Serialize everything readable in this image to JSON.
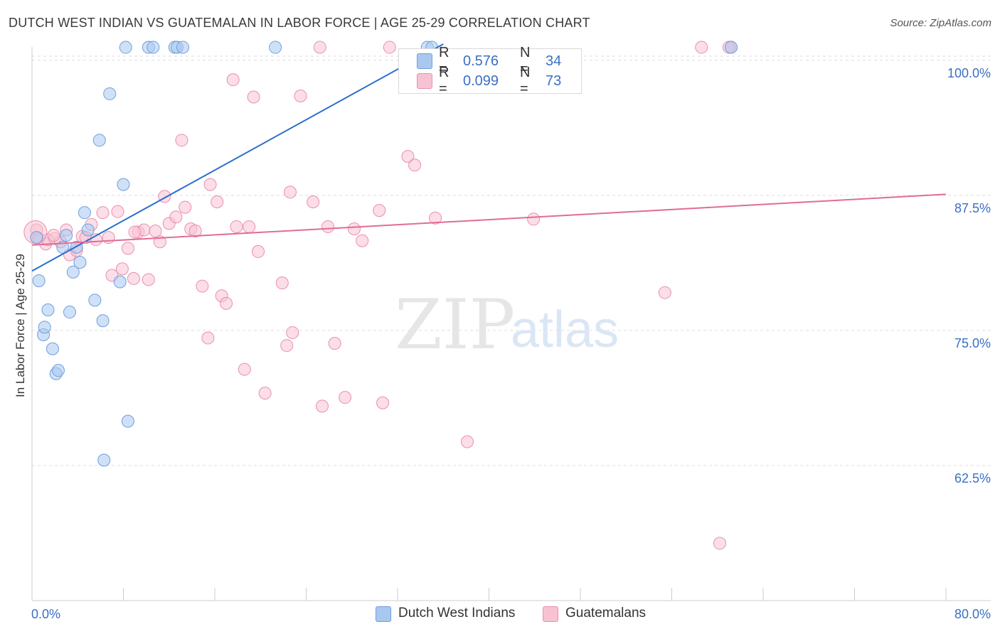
{
  "title": "DUTCH WEST INDIAN VS GUATEMALAN IN LABOR FORCE | AGE 25-29 CORRELATION CHART",
  "source": "Source: ZipAtlas.com",
  "watermark": {
    "zip": "ZIP",
    "atlas": "atlas"
  },
  "legend": {
    "rows": [
      {
        "r_label": "R =",
        "r_value": "0.576",
        "n_label": "N =",
        "n_value": "34"
      },
      {
        "r_label": "R =",
        "r_value": "0.099",
        "n_label": "N =",
        "n_value": "73"
      }
    ]
  },
  "bottom_legend": {
    "series1": "Dutch West Indians",
    "series2": "Guatemalans"
  },
  "colors": {
    "blue_fill": "#a9c8f0",
    "blue_stroke": "#6d9ee0",
    "blue_line": "#2a6fd0",
    "pink_fill": "#f7c3d3",
    "pink_stroke": "#ea8fae",
    "pink_line": "#e06c98",
    "axis_label": "#3a6fc4",
    "grid": "#dedede"
  },
  "chart_data": {
    "type": "scatter",
    "title": "DUTCH WEST INDIAN VS GUATEMALAN IN LABOR FORCE | AGE 25-29 CORRELATION CHART",
    "xlabel": "",
    "ylabel": "In Labor Force | Age 25-29",
    "xlim": [
      0,
      80
    ],
    "ylim": [
      50,
      101.5
    ],
    "x_tick_labels": [
      "0.0%",
      "80.0%"
    ],
    "y_ticks": [
      62.5,
      75.0,
      87.5,
      100.0
    ],
    "y_tick_labels": [
      "62.5%",
      "75.0%",
      "87.5%",
      "100.0%"
    ],
    "series": [
      {
        "name": "Dutch West Indians",
        "color": "#6d9ee0",
        "r": 0.576,
        "n": 34,
        "trend": {
          "x": [
            0,
            36
          ],
          "y": [
            80.5,
            101.5
          ]
        },
        "points": [
          [
            0.4,
            83.6
          ],
          [
            0.6,
            79.6
          ],
          [
            1.0,
            74.6
          ],
          [
            1.1,
            75.3
          ],
          [
            1.4,
            76.9
          ],
          [
            1.8,
            73.3
          ],
          [
            2.1,
            71.0
          ],
          [
            2.3,
            71.3
          ],
          [
            2.7,
            82.7
          ],
          [
            3.0,
            83.8
          ],
          [
            3.3,
            76.7
          ],
          [
            3.6,
            80.4
          ],
          [
            3.9,
            82.7
          ],
          [
            4.2,
            81.3
          ],
          [
            4.6,
            85.9
          ],
          [
            4.9,
            84.3
          ],
          [
            5.5,
            77.8
          ],
          [
            5.9,
            92.6
          ],
          [
            6.2,
            75.9
          ],
          [
            6.3,
            63.0
          ],
          [
            6.8,
            96.9
          ],
          [
            7.7,
            79.5
          ],
          [
            8.0,
            88.5
          ],
          [
            8.4,
            66.6
          ],
          [
            8.2,
            101.2
          ],
          [
            10.2,
            101.2
          ],
          [
            10.6,
            101.2
          ],
          [
            12.5,
            101.2
          ],
          [
            12.7,
            101.2
          ],
          [
            13.2,
            101.2
          ],
          [
            21.3,
            101.2
          ],
          [
            34.6,
            101.2
          ],
          [
            35.0,
            101.2
          ],
          [
            61.2,
            101.2
          ]
        ]
      },
      {
        "name": "Guatemalans",
        "color": "#ea8fae",
        "r": 0.099,
        "n": 73,
        "trend": {
          "x": [
            0,
            80
          ],
          "y": [
            82.9,
            87.6
          ]
        },
        "points": [
          [
            0.4,
            84.3
          ],
          [
            0.6,
            83.5
          ],
          [
            1.2,
            83.0
          ],
          [
            1.4,
            83.4
          ],
          [
            2.0,
            83.5
          ],
          [
            2.5,
            83.2
          ],
          [
            3.0,
            84.3
          ],
          [
            3.3,
            82.0
          ],
          [
            3.9,
            82.4
          ],
          [
            4.4,
            83.7
          ],
          [
            4.7,
            83.6
          ],
          [
            5.2,
            84.8
          ],
          [
            5.6,
            83.4
          ],
          [
            6.2,
            85.9
          ],
          [
            6.7,
            83.6
          ],
          [
            7.0,
            80.1
          ],
          [
            7.5,
            86.0
          ],
          [
            7.9,
            80.7
          ],
          [
            8.4,
            82.6
          ],
          [
            8.9,
            79.8
          ],
          [
            9.3,
            84.1
          ],
          [
            9.8,
            84.3
          ],
          [
            10.2,
            79.7
          ],
          [
            10.8,
            84.2
          ],
          [
            11.2,
            83.2
          ],
          [
            11.6,
            87.4
          ],
          [
            12.0,
            84.9
          ],
          [
            12.6,
            85.5
          ],
          [
            13.1,
            92.6
          ],
          [
            13.4,
            86.4
          ],
          [
            13.9,
            84.4
          ],
          [
            14.3,
            84.2
          ],
          [
            14.9,
            79.1
          ],
          [
            15.4,
            74.3
          ],
          [
            15.6,
            88.5
          ],
          [
            16.2,
            86.9
          ],
          [
            16.6,
            78.2
          ],
          [
            17.0,
            77.5
          ],
          [
            17.6,
            98.2
          ],
          [
            17.9,
            84.6
          ],
          [
            18.6,
            71.4
          ],
          [
            19.0,
            84.6
          ],
          [
            19.4,
            96.6
          ],
          [
            19.8,
            82.3
          ],
          [
            20.4,
            69.2
          ],
          [
            21.9,
            79.4
          ],
          [
            22.3,
            73.6
          ],
          [
            22.6,
            87.8
          ],
          [
            22.8,
            74.8
          ],
          [
            23.5,
            96.7
          ],
          [
            24.6,
            86.9
          ],
          [
            25.2,
            101.2
          ],
          [
            25.4,
            68.0
          ],
          [
            25.9,
            84.6
          ],
          [
            26.5,
            73.8
          ],
          [
            27.4,
            68.8
          ],
          [
            28.2,
            84.4
          ],
          [
            28.9,
            83.3
          ],
          [
            30.4,
            86.1
          ],
          [
            30.7,
            68.3
          ],
          [
            31.3,
            101.2
          ],
          [
            32.9,
            91.1
          ],
          [
            33.5,
            90.3
          ],
          [
            35.3,
            85.4
          ],
          [
            38.1,
            64.7
          ],
          [
            43.9,
            85.3
          ],
          [
            55.4,
            78.5
          ],
          [
            58.6,
            101.2
          ],
          [
            60.2,
            55.3
          ],
          [
            61.2,
            101.2
          ],
          [
            61.0,
            101.2
          ],
          [
            1.9,
            83.8
          ],
          [
            9.0,
            84.1
          ]
        ]
      }
    ]
  }
}
